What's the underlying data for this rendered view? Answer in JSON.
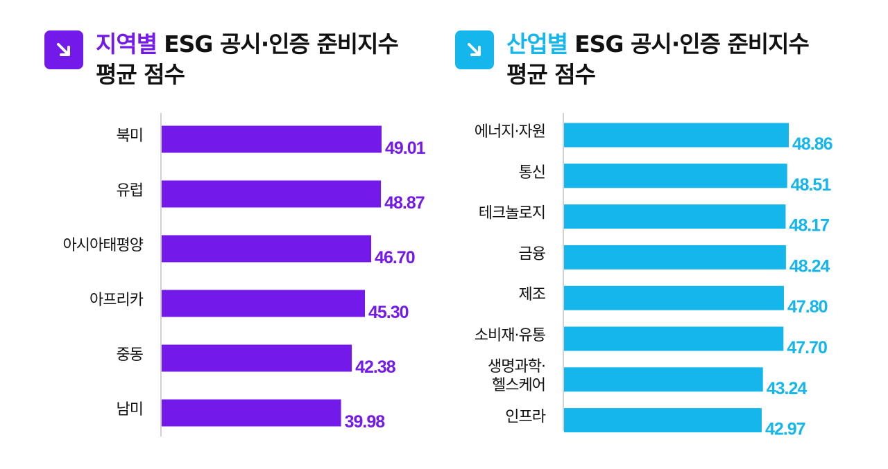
{
  "colors": {
    "region": "#7319EA",
    "industry": "#14B6EC",
    "axis": "#D2D2D2",
    "text": "#111111"
  },
  "chart_data": [
    {
      "type": "bar",
      "orientation": "horizontal",
      "title_accent": "지역별",
      "title_rest": "ESG 공시·인증 준비지수",
      "title_line2": "평균 점수",
      "badge_icon": "arrow-down-right-icon",
      "categories": [
        "북미",
        "유럽",
        "아시아태평양",
        "아프리카",
        "중동",
        "남미"
      ],
      "values": [
        49.01,
        48.87,
        46.7,
        45.3,
        42.38,
        39.98
      ],
      "value_labels": [
        "49.01",
        "48.87",
        "46.70",
        "45.30",
        "42.38",
        "39.98"
      ],
      "xlim": [
        0,
        49.01
      ],
      "grid": false,
      "legend": "none"
    },
    {
      "type": "bar",
      "orientation": "horizontal",
      "title_accent": "산업별",
      "title_rest": "ESG 공시·인증 준비지수",
      "title_line2": "평균 점수",
      "badge_icon": "arrow-down-right-icon",
      "categories": [
        "에너지·자원",
        "통신",
        "테크놀로지",
        "금융",
        "제조",
        "소비재·유통",
        "생명과학·\n헬스케어",
        "인프라"
      ],
      "values": [
        48.86,
        48.51,
        48.17,
        48.24,
        47.8,
        47.7,
        43.24,
        42.97
      ],
      "value_labels": [
        "48.86",
        "48.51",
        "48.17",
        "48.24",
        "47.80",
        "47.70",
        "43.24",
        "42.97"
      ],
      "xlim": [
        0,
        48.86
      ],
      "grid": false,
      "legend": "none"
    }
  ]
}
